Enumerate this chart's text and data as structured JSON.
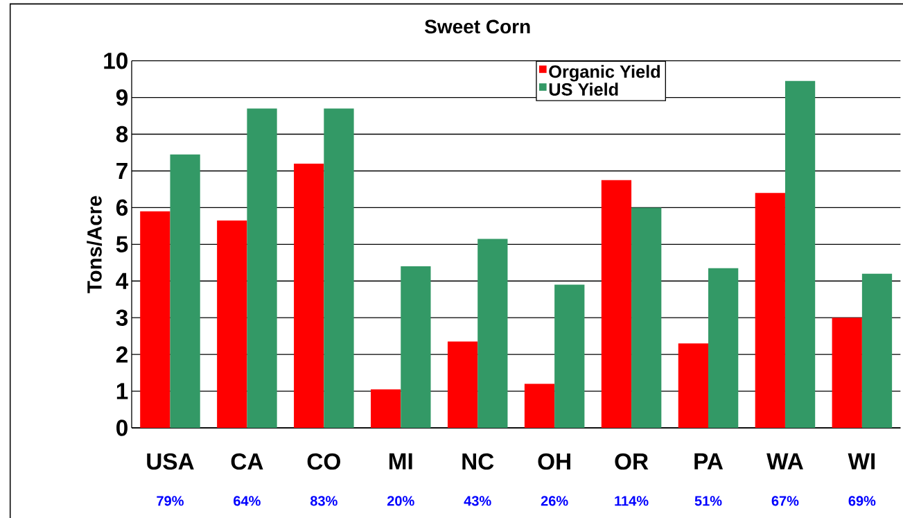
{
  "chart_data": {
    "type": "bar",
    "title": "Sweet Corn",
    "ylabel": "Tons/Acre",
    "categories": [
      "USA",
      "CA",
      "CO",
      "MI",
      "NC",
      "OH",
      "OR",
      "PA",
      "WA",
      "WI"
    ],
    "series": [
      {
        "name": "Organic Yield",
        "color": "#ff0000",
        "values": [
          5.9,
          5.65,
          7.2,
          1.05,
          2.35,
          1.2,
          6.75,
          2.3,
          6.4,
          3.0
        ]
      },
      {
        "name": "US Yield",
        "color": "#339966",
        "values": [
          7.45,
          8.7,
          8.7,
          4.4,
          5.15,
          3.9,
          6.0,
          4.35,
          9.45,
          4.2
        ]
      }
    ],
    "ylim": [
      0,
      10
    ],
    "yticks": [
      0,
      1,
      2,
      3,
      4,
      5,
      6,
      7,
      8,
      9,
      10
    ],
    "grid": "y",
    "legend": "top right",
    "annotations": [
      "79%",
      "64%",
      "83%",
      "20%",
      "43%",
      "26%",
      "114%",
      "51%",
      "67%",
      "69%"
    ]
  }
}
